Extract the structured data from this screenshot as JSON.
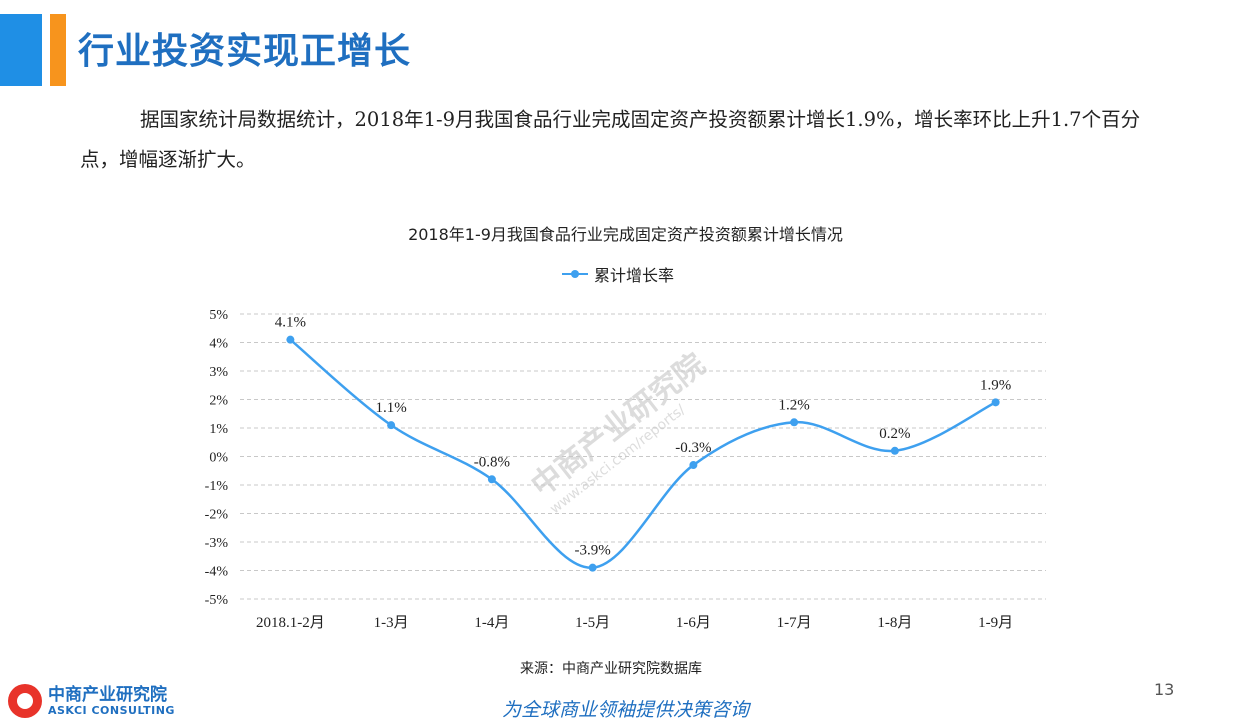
{
  "header": {
    "title": "行业投资实现正增长"
  },
  "paragraph": "据国家统计局数据统计，2018年1-9月我国食品行业完成固定资产投资额累计增长1.9%，增长率环比上升1.7个百分点，增幅逐渐扩大。",
  "chart_data": {
    "type": "line",
    "title": "2018年1-9月我国食品行业完成固定资产投资额累计增长情况",
    "categories": [
      "2018.1-2月",
      "1-3月",
      "1-4月",
      "1-5月",
      "1-6月",
      "1-7月",
      "1-8月",
      "1-9月"
    ],
    "series": [
      {
        "name": "累计增长率",
        "values": [
          4.1,
          1.1,
          -0.8,
          -3.9,
          -0.3,
          1.2,
          0.2,
          1.9
        ]
      }
    ],
    "data_labels": [
      "4.1%",
      "1.1%",
      "-0.8%",
      "-3.9%",
      "-0.3%",
      "1.2%",
      "0.2%",
      "1.9%"
    ],
    "yticks": [
      "5%",
      "4%",
      "3%",
      "2%",
      "1%",
      "0%",
      "-1%",
      "-2%",
      "-3%",
      "-4%",
      "-5%"
    ],
    "ylim": [
      -5,
      5
    ],
    "grid": true,
    "legend": "top-center",
    "color": "#3ea0ef"
  },
  "source": "来源：中商产业研究院数据库",
  "page_number": "13",
  "footer": {
    "logo_cn": "中商产业研究院",
    "logo_en": "ASKCI CONSULTING",
    "slogan": "为全球商业领袖提供决策咨询"
  },
  "watermark": {
    "cn": "中商产业研究院",
    "url": "www.askci.com/reports/"
  }
}
